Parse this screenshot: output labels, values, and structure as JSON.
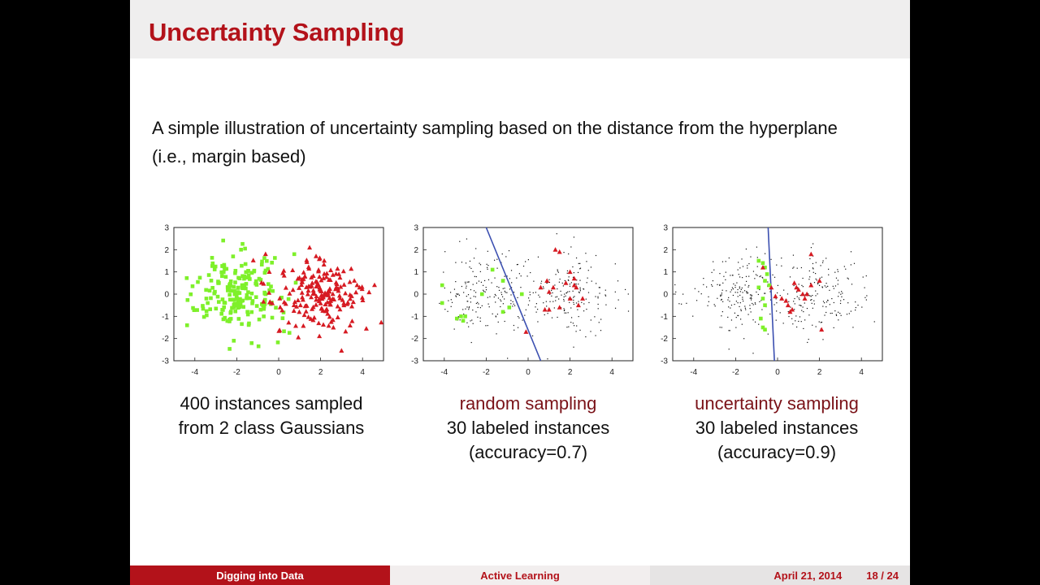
{
  "slide": {
    "title": "Uncertainty Sampling",
    "intro": "A simple illustration of uncertainty sampling based on the distance from the hyperplane (i.e., margin based)"
  },
  "colors": {
    "accent": "#b3121a",
    "class_a": "#7ef02a",
    "class_b": "#d61a22",
    "line": "#3b4fb0"
  },
  "captions": [
    {
      "line1": "400 instances sampled",
      "line2": "from 2 class Gaussians",
      "line3": ""
    },
    {
      "line1": "random sampling",
      "line2": "30 labeled instances",
      "line3": "(accuracy=0.7)"
    },
    {
      "line1": "uncertainty sampling",
      "line2": "30 labeled instances",
      "line3": "(accuracy=0.9)"
    }
  ],
  "footer": {
    "left": "Digging into Data",
    "mid": "Active Learning",
    "date": "April 21, 2014",
    "page": "18 / 24"
  },
  "chart_data": [
    {
      "type": "scatter",
      "title": "",
      "xlim": [
        -5,
        5
      ],
      "ylim": [
        -3,
        3
      ],
      "xticks": [
        -4,
        -2,
        0,
        2,
        4
      ],
      "yticks": [
        -3,
        -2,
        -1,
        0,
        1,
        2,
        3
      ],
      "series": [
        {
          "marker": "square",
          "color": "#7ef02a",
          "center": [
            -2,
            0
          ],
          "n": 200
        },
        {
          "marker": "triangle",
          "color": "#d61a22",
          "center": [
            2,
            0
          ],
          "n": 200
        }
      ]
    },
    {
      "type": "scatter",
      "title": "",
      "xlim": [
        -5,
        5
      ],
      "ylim": [
        -3,
        3
      ],
      "xticks": [
        -4,
        -2,
        0,
        2,
        4
      ],
      "yticks": [
        -3,
        -2,
        -1,
        0,
        1,
        2,
        3
      ],
      "unlabeled_n": 370,
      "labeled_green": [
        [
          -4.1,
          0.4
        ],
        [
          -4.1,
          -0.4
        ],
        [
          -3.2,
          -1.0
        ],
        [
          -3.4,
          -1.1
        ],
        [
          -3.0,
          -1.0
        ],
        [
          -2.2,
          0.0
        ],
        [
          -1.7,
          1.1
        ],
        [
          -1.2,
          0.6
        ],
        [
          -1.2,
          -0.8
        ],
        [
          -0.9,
          -0.6
        ],
        [
          -0.3,
          0.0
        ],
        [
          -3.1,
          -1.2
        ]
      ],
      "labeled_red": [
        [
          0.9,
          0.6
        ],
        [
          1.2,
          0.3
        ],
        [
          1.3,
          2.0
        ],
        [
          1.5,
          1.9
        ],
        [
          2.0,
          1.0
        ],
        [
          2.2,
          0.7
        ],
        [
          2.3,
          0.3
        ],
        [
          2.4,
          -0.5
        ],
        [
          0.8,
          -0.7
        ],
        [
          1.0,
          -0.7
        ],
        [
          1.5,
          -0.6
        ],
        [
          1.8,
          0.5
        ],
        [
          2.0,
          -0.2
        ],
        [
          2.6,
          -0.2
        ],
        [
          0.6,
          0.3
        ],
        [
          -0.1,
          -1.7
        ],
        [
          2.2,
          0.4
        ],
        [
          1.0,
          0.1
        ]
      ],
      "boundary": [
        [
          -2.0,
          3.0
        ],
        [
          0.6,
          -3.0
        ]
      ]
    },
    {
      "type": "scatter",
      "title": "",
      "xlim": [
        -5,
        5
      ],
      "ylim": [
        -3,
        3
      ],
      "xticks": [
        -4,
        -2,
        0,
        2,
        4
      ],
      "yticks": [
        -3,
        -2,
        -1,
        0,
        1,
        2,
        3
      ],
      "unlabeled_n": 370,
      "labeled_green": [
        [
          -0.9,
          1.5
        ],
        [
          -0.7,
          1.4
        ],
        [
          -0.6,
          1.2
        ],
        [
          -0.5,
          0.9
        ],
        [
          -0.6,
          0.6
        ],
        [
          -0.4,
          0.4
        ],
        [
          -0.7,
          -0.2
        ],
        [
          -0.6,
          -0.5
        ],
        [
          -0.8,
          -1.1
        ],
        [
          -0.7,
          -1.5
        ],
        [
          -0.6,
          -1.6
        ],
        [
          -0.9,
          0.3
        ]
      ],
      "labeled_red": [
        [
          -0.7,
          1.2
        ],
        [
          -0.3,
          0.3
        ],
        [
          -0.1,
          -0.1
        ],
        [
          0.2,
          -0.2
        ],
        [
          0.5,
          -0.5
        ],
        [
          0.7,
          -0.7
        ],
        [
          0.9,
          0.3
        ],
        [
          1.2,
          0.0
        ],
        [
          1.3,
          -0.2
        ],
        [
          1.4,
          0.0
        ],
        [
          1.6,
          0.4
        ],
        [
          2.0,
          0.6
        ],
        [
          1.6,
          1.8
        ],
        [
          0.6,
          -0.8
        ],
        [
          2.1,
          -1.6
        ],
        [
          1.0,
          0.2
        ],
        [
          0.8,
          0.5
        ],
        [
          0.4,
          -0.3
        ]
      ],
      "boundary": [
        [
          -0.45,
          3.0
        ],
        [
          -0.15,
          -3.0
        ]
      ]
    }
  ]
}
